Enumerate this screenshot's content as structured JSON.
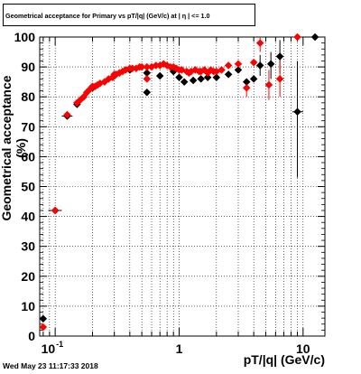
{
  "chart_data": {
    "type": "scatter",
    "title": "Geometrical acceptance for Primary vs pT/|q| (GeV/c) at | η | <= 1.0",
    "xlabel": "pT/|q| (GeV/c)",
    "ylabel": "Geometrical acceptance (%)",
    "xscale": "log",
    "xlim": [
      0.075,
      15
    ],
    "ylim": [
      0,
      100
    ],
    "yticks": [
      0,
      10,
      20,
      30,
      40,
      50,
      60,
      70,
      80,
      90,
      100
    ],
    "xtick_labels": [
      {
        "value": 0.1,
        "label": "10",
        "exp": "-1"
      },
      {
        "value": 1,
        "label": "1",
        "exp": ""
      },
      {
        "value": 10,
        "label": "10",
        "exp": ""
      }
    ],
    "grid": true,
    "series": [
      {
        "color": "#000000",
        "points": [
          {
            "x": 0.08,
            "y": 5.8
          },
          {
            "x": 0.1,
            "y": 42
          },
          {
            "x": 0.125,
            "y": 73.6
          },
          {
            "x": 0.15,
            "y": 77.5
          },
          {
            "x": 0.2,
            "y": 83
          },
          {
            "x": 0.3,
            "y": 87
          },
          {
            "x": 0.4,
            "y": 89
          },
          {
            "x": 0.55,
            "y": 81.5
          },
          {
            "x": 0.55,
            "y": 88
          },
          {
            "x": 0.7,
            "y": 87
          },
          {
            "x": 0.9,
            "y": 88.5
          },
          {
            "x": 1.0,
            "y": 86.5
          },
          {
            "x": 1.1,
            "y": 85
          },
          {
            "x": 1.3,
            "y": 85.5
          },
          {
            "x": 1.5,
            "y": 86
          },
          {
            "x": 1.7,
            "y": 86.5
          },
          {
            "x": 2.0,
            "y": 86.5
          },
          {
            "x": 2.5,
            "y": 87.5
          },
          {
            "x": 3.0,
            "y": 89
          },
          {
            "x": 3.5,
            "y": 85
          },
          {
            "x": 4.0,
            "y": 86
          },
          {
            "x": 4.5,
            "y": 90.5
          },
          {
            "x": 5.5,
            "y": 91
          },
          {
            "x": 6.5,
            "y": 93.5
          },
          {
            "x": 9.0,
            "y": 75
          },
          {
            "x": 12.5,
            "y": 100
          }
        ]
      },
      {
        "color": "#ff0000",
        "points": [
          {
            "x": 0.08,
            "y": 3
          },
          {
            "x": 0.1,
            "y": 42
          },
          {
            "x": 0.125,
            "y": 74
          },
          {
            "x": 0.15,
            "y": 78
          },
          {
            "x": 0.2,
            "y": 83.5
          },
          {
            "x": 0.3,
            "y": 87.5
          },
          {
            "x": 0.4,
            "y": 89.5
          },
          {
            "x": 0.55,
            "y": 86
          },
          {
            "x": 0.55,
            "y": 90
          },
          {
            "x": 0.7,
            "y": 90.5
          },
          {
            "x": 0.9,
            "y": 90
          },
          {
            "x": 1.0,
            "y": 89
          },
          {
            "x": 1.2,
            "y": 88
          },
          {
            "x": 1.5,
            "y": 88.5
          },
          {
            "x": 1.8,
            "y": 89
          },
          {
            "x": 2.0,
            "y": 88.5
          },
          {
            "x": 2.5,
            "y": 90.5
          },
          {
            "x": 3.0,
            "y": 91
          },
          {
            "x": 3.5,
            "y": 83
          },
          {
            "x": 4.0,
            "y": 91.5
          },
          {
            "x": 4.5,
            "y": 98
          },
          {
            "x": 5.3,
            "y": 84
          },
          {
            "x": 6.5,
            "y": 86
          },
          {
            "x": 9.0,
            "y": 100
          }
        ]
      }
    ],
    "dense_band": [
      {
        "x": 0.16,
        "y": 79
      },
      {
        "x": 0.17,
        "y": 80
      },
      {
        "x": 0.18,
        "y": 81.5
      },
      {
        "x": 0.19,
        "y": 82.5
      },
      {
        "x": 0.21,
        "y": 83.5
      },
      {
        "x": 0.22,
        "y": 84
      },
      {
        "x": 0.23,
        "y": 84.5
      },
      {
        "x": 0.25,
        "y": 85
      },
      {
        "x": 0.27,
        "y": 86
      },
      {
        "x": 0.29,
        "y": 86.5
      },
      {
        "x": 0.31,
        "y": 87.5
      },
      {
        "x": 0.33,
        "y": 88
      },
      {
        "x": 0.35,
        "y": 88.5
      },
      {
        "x": 0.37,
        "y": 89
      },
      {
        "x": 0.42,
        "y": 89.5
      },
      {
        "x": 0.45,
        "y": 89.5
      },
      {
        "x": 0.48,
        "y": 90
      },
      {
        "x": 0.5,
        "y": 90
      },
      {
        "x": 0.6,
        "y": 90
      },
      {
        "x": 0.65,
        "y": 90.5
      },
      {
        "x": 0.75,
        "y": 91
      },
      {
        "x": 0.8,
        "y": 90.5
      },
      {
        "x": 0.85,
        "y": 90
      },
      {
        "x": 0.95,
        "y": 89.5
      },
      {
        "x": 1.05,
        "y": 89
      },
      {
        "x": 1.15,
        "y": 88.5
      },
      {
        "x": 1.25,
        "y": 88.5
      },
      {
        "x": 1.35,
        "y": 89
      },
      {
        "x": 1.45,
        "y": 88.5
      },
      {
        "x": 1.6,
        "y": 89
      },
      {
        "x": 1.7,
        "y": 88
      },
      {
        "x": 1.9,
        "y": 88.5
      },
      {
        "x": 2.2,
        "y": 89
      }
    ]
  },
  "footer": {
    "timestamp": "Wed May 23 11:17:33 2018"
  }
}
